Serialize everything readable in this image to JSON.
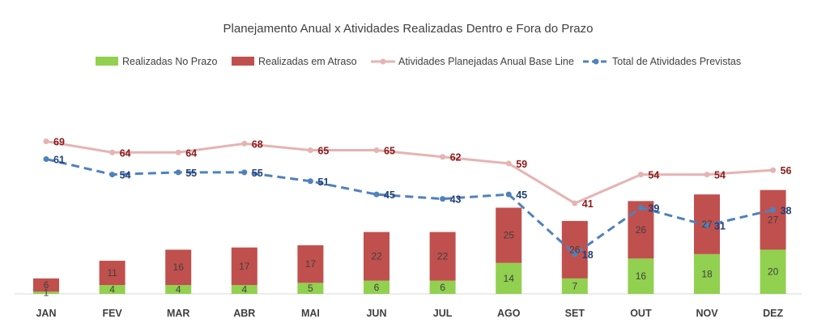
{
  "chart_data": {
    "type": "bar",
    "title": "Planejamento Anual x Atividades Realizadas Dentro e Fora do Prazo",
    "categories": [
      "JAN",
      "FEV",
      "MAR",
      "ABR",
      "MAI",
      "JUN",
      "JUL",
      "AGO",
      "SET",
      "OUT",
      "NOV",
      "DEZ"
    ],
    "series": [
      {
        "name": "Realizadas No Prazo",
        "type": "bar",
        "stack": "realizadas",
        "color": "#92d050",
        "values": [
          1,
          4,
          4,
          4,
          5,
          6,
          6,
          14,
          7,
          16,
          18,
          20
        ]
      },
      {
        "name": "Realizadas em Atraso",
        "type": "bar",
        "stack": "realizadas",
        "color": "#c0504d",
        "values": [
          6,
          11,
          16,
          17,
          17,
          22,
          22,
          25,
          26,
          26,
          27,
          27
        ]
      },
      {
        "name": "Atividades Planejadas Anual Base Line",
        "type": "line",
        "color": "#e6b3b3",
        "values": [
          69,
          64,
          64,
          68,
          65,
          65,
          62,
          59,
          41,
          54,
          54,
          56
        ]
      },
      {
        "name": "Total de Atividades Previstas",
        "type": "line",
        "style": "dashed",
        "color": "#4f81bd",
        "values": [
          61,
          54,
          55,
          55,
          51,
          45,
          43,
          45,
          18,
          39,
          31,
          38
        ]
      }
    ],
    "ylim": [
      0,
      85
    ],
    "grid": false,
    "legend_position": "top"
  }
}
